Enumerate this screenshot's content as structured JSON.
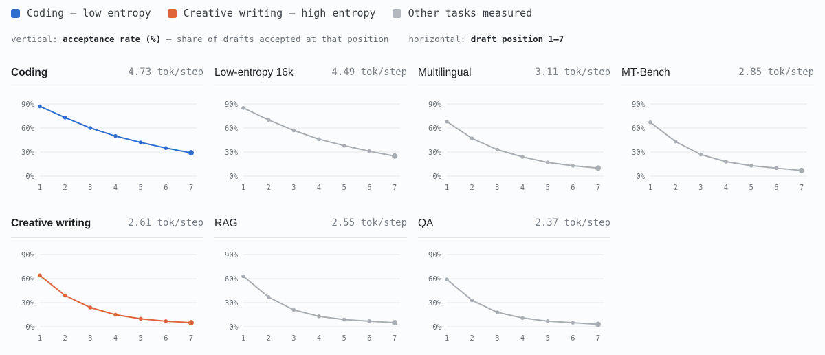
{
  "legend": [
    {
      "label": "Coding — low entropy",
      "color": "#2f6fd1"
    },
    {
      "label": "Creative writing — high entropy",
      "color": "#e0643a"
    },
    {
      "label": "Other tasks measured",
      "color": "#b4b9bf"
    }
  ],
  "axes_note": {
    "vertical_key": "vertical:",
    "vertical_value": "acceptance rate (%)",
    "vertical_desc": "— share of drafts accepted at that position",
    "horizontal_key": "horizontal:",
    "horizontal_value": "draft position 1–7"
  },
  "colors": {
    "coding": "#2f6fd1",
    "creative": "#e0643a",
    "other": "#a9aeb4",
    "grid": "#e6e9ec"
  },
  "chart_data": [
    {
      "type": "line",
      "title": "Coding",
      "rate": "4.73 tok/step",
      "highlight": "coding",
      "x": [
        1,
        2,
        3,
        4,
        5,
        6,
        7
      ],
      "ylim": [
        0,
        90
      ],
      "yticks": [
        "0%",
        "30%",
        "60%",
        "90%"
      ],
      "values": [
        87,
        73,
        60,
        50,
        42,
        35,
        29
      ]
    },
    {
      "type": "line",
      "title": "Low-entropy 16k",
      "rate": "4.49 tok/step",
      "highlight": "other",
      "x": [
        1,
        2,
        3,
        4,
        5,
        6,
        7
      ],
      "ylim": [
        0,
        90
      ],
      "yticks": [
        "0%",
        "30%",
        "60%",
        "90%"
      ],
      "values": [
        85,
        70,
        57,
        46,
        38,
        31,
        25
      ]
    },
    {
      "type": "line",
      "title": "Multilingual",
      "rate": "3.11 tok/step",
      "highlight": "other",
      "x": [
        1,
        2,
        3,
        4,
        5,
        6,
        7
      ],
      "ylim": [
        0,
        90
      ],
      "yticks": [
        "0%",
        "30%",
        "60%",
        "90%"
      ],
      "values": [
        68,
        47,
        33,
        24,
        17,
        13,
        10
      ]
    },
    {
      "type": "line",
      "title": "MT-Bench",
      "rate": "2.85 tok/step",
      "highlight": "other",
      "x": [
        1,
        2,
        3,
        4,
        5,
        6,
        7
      ],
      "ylim": [
        0,
        90
      ],
      "yticks": [
        "0%",
        "30%",
        "60%",
        "90%"
      ],
      "values": [
        67,
        43,
        27,
        18,
        13,
        10,
        7
      ]
    },
    {
      "type": "line",
      "title": "Creative writing",
      "rate": "2.61 tok/step",
      "highlight": "creative",
      "x": [
        1,
        2,
        3,
        4,
        5,
        6,
        7
      ],
      "ylim": [
        0,
        90
      ],
      "yticks": [
        "0%",
        "30%",
        "60%",
        "90%"
      ],
      "values": [
        64,
        39,
        24,
        15,
        10,
        7,
        5
      ]
    },
    {
      "type": "line",
      "title": "RAG",
      "rate": "2.55 tok/step",
      "highlight": "other",
      "x": [
        1,
        2,
        3,
        4,
        5,
        6,
        7
      ],
      "ylim": [
        0,
        90
      ],
      "yticks": [
        "0%",
        "30%",
        "60%",
        "90%"
      ],
      "values": [
        63,
        37,
        21,
        13,
        9,
        7,
        5
      ]
    },
    {
      "type": "line",
      "title": "QA",
      "rate": "2.37 tok/step",
      "highlight": "other",
      "x": [
        1,
        2,
        3,
        4,
        5,
        6,
        7
      ],
      "ylim": [
        0,
        90
      ],
      "yticks": [
        "0%",
        "30%",
        "60%",
        "90%"
      ],
      "values": [
        59,
        33,
        18,
        11,
        7,
        5,
        3
      ]
    }
  ]
}
